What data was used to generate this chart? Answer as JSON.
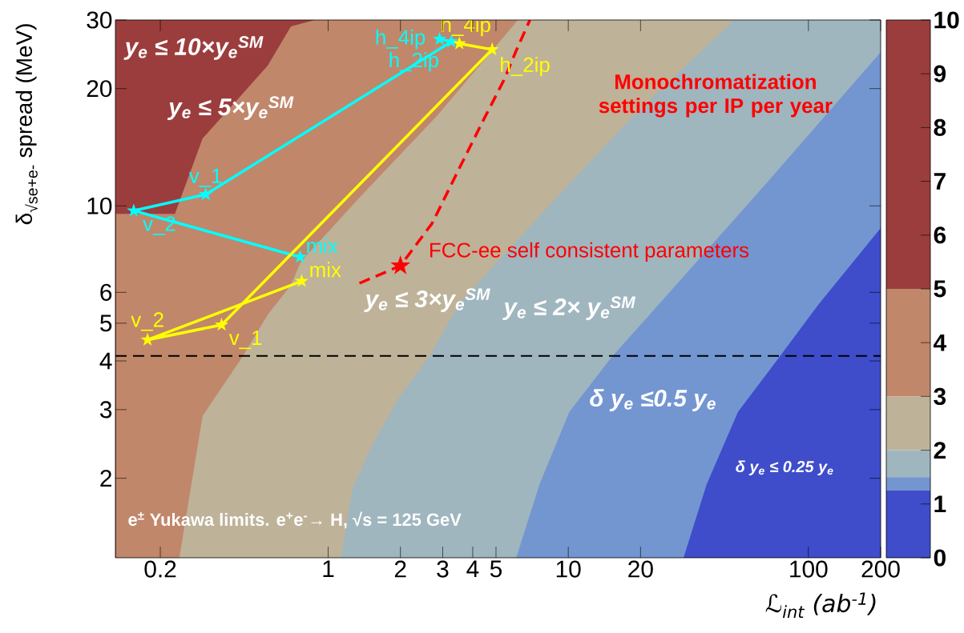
{
  "chart_data": [
    {
      "type": "line",
      "xlabel": "ℒ$_{int}$  (ab$^{-1}$)",
      "ylabel": "δ$_{√se+e-}$ spread (MeV)",
      "log": "xy",
      "xlim": [
        0.13,
        200
      ],
      "ylim": [
        1.25,
        30
      ],
      "xticks": [
        0.2,
        1,
        2,
        3,
        4,
        5,
        10,
        20,
        100,
        200
      ],
      "yticks": [
        2,
        3,
        4,
        5,
        6,
        10,
        20,
        30
      ],
      "bands": [
        {
          "axis": "y",
          "from": 1.25,
          "to": 30,
          "color": "#9b3d3d"
        }
      ],
      "ref_lines": [
        {
          "axis": "y",
          "value": 4.12,
          "color": "#000000",
          "line_style": "dashed"
        }
      ],
      "series": [
        {
          "type": "area",
          "color": "#c0876b",
          "x": [
            0.131,
            0.23,
            0.3,
            0.44,
            0.56,
            0.7,
            0.878,
            6.17
          ],
          "values": [
            9.54,
            9.54,
            14.9,
            19.4,
            22.9,
            28.9,
            30,
            30
          ]
        },
        {
          "type": "area",
          "color": "#beb299",
          "x": [
            0.24,
            0.3,
            0.44,
            0.56,
            0.7,
            0.77,
            1.33,
            2.86,
            6.17,
            200
          ],
          "values": [
            1.25,
            2.89,
            4.1,
            5.26,
            6.27,
            7.19,
            10.4,
            17.1,
            30,
            30
          ]
        },
        {
          "type": "area",
          "color": "#9fb6bf",
          "x": [
            1.13,
            1.26,
            1.5,
            1.95,
            2.65,
            3.52,
            9.05,
            19.5,
            49,
            200
          ],
          "values": [
            1.25,
            1.88,
            2.38,
            3.19,
            4.12,
            5.62,
            10.6,
            17.5,
            30,
            30
          ]
        },
        {
          "type": "area",
          "color": "#7396d1",
          "x": [
            6.07,
            7.59,
            10.1,
            15.2,
            24.0,
            66.6,
            200
          ],
          "values": [
            1.25,
            1.93,
            2.96,
            4.1,
            5.62,
            11.4,
            24.8
          ]
        },
        {
          "type": "area",
          "color": "#3f4dcb",
          "x": [
            30.2,
            37.7,
            50.9,
            75.9,
            111,
            200
          ],
          "values": [
            1.25,
            1.93,
            2.96,
            4.1,
            5.62,
            8.77
          ]
        },
        {
          "type": "line",
          "color": "#00ffff",
          "marker": "star",
          "x": [
            0.764,
            0.155,
            0.309,
            3.26,
            2.91
          ],
          "values": [
            7.39,
            9.72,
            10.7,
            26.4,
            26.8
          ]
        },
        {
          "type": "line",
          "color": "#ffff00",
          "marker": "star",
          "x": [
            0.776,
            0.177,
            0.36,
            4.82,
            3.52
          ],
          "values": [
            6.41,
            4.53,
            4.95,
            25.2,
            26.1
          ]
        },
        {
          "type": "line",
          "color": "#ff0000",
          "marker": "none",
          "line_style": "dashed",
          "x": [
            1.35,
            2.0,
            2.71,
            3.52,
            4.43,
            5.41,
            6.03,
            6.92
          ],
          "values": [
            6.33,
            7.02,
            9.02,
            12.5,
            16.6,
            21.1,
            24.8,
            30
          ]
        },
        {
          "type": "scatter",
          "color": "#ff0000",
          "marker": "star",
          "x": [
            2.0
          ],
          "values": [
            7.02
          ]
        }
      ],
      "annotations": [
        "y$_{e}$ ≤ 10×y$_{e}$$^{SM}$",
        "y$_{e}$ ≤ 5×y$_{e}$$^{SM}$",
        "y$_{e}$ ≤ 3×y$_{e}$$^{SM}$",
        "y$_{e}$ ≤ 2× y$_{e}$$^{SM}$",
        "δ y$_{e}$ ≤0.5 y$_{e}$",
        "δ y$_{e}$ ≤ 0.25 y$_{e}$",
        "e$^{±}$ Yukawa limits. e$^{+}$e$^{-}$→ H, √s = 125 GeV",
        "Monochromatization settings per IP per year",
        {
          "text": "mix",
          "x": 0.764,
          "y": 7.39
        },
        {
          "text": "v_2",
          "x": 0.155,
          "y": 9.72
        },
        {
          "text": "v_1",
          "x": 0.309,
          "y": 10.7
        },
        {
          "text": "h_2ip",
          "x": 3.26,
          "y": 26.4
        },
        {
          "text": "h_4ip",
          "x": 2.91,
          "y": 26.8
        },
        {
          "text": "mix",
          "x": 0.776,
          "y": 6.41
        },
        {
          "text": "v_2",
          "x": 0.177,
          "y": 4.53
        },
        {
          "text": "v_1",
          "x": 0.36,
          "y": 4.95
        },
        {
          "text": "h_2ip",
          "x": 4.82,
          "y": 25.2
        },
        {
          "text": "h_4ip",
          "x": 3.52,
          "y": 26.1
        },
        {
          "text": "FCC-ee self consistent parameters",
          "x": 2.0,
          "y": 7.02
        }
      ]
    },
    {
      "type": "bar",
      "stacked": true,
      "categories": [
        null
      ],
      "ylim": [
        0,
        10
      ],
      "yticks": [
        0,
        1,
        2,
        3,
        4,
        5,
        6,
        7,
        8,
        9,
        10
      ],
      "series": [
        {
          "color": "#3f4dcb",
          "values": [
            1.25
          ]
        },
        {
          "color": "#7396d1",
          "values": [
            0.25
          ]
        },
        {
          "color": "#9fb6bf",
          "values": [
            0.5
          ]
        },
        {
          "color": "#beb299",
          "values": [
            1
          ]
        },
        {
          "color": "#c0876b",
          "values": [
            2
          ]
        },
        {
          "color": "#9b3d3d",
          "values": [
            5
          ]
        }
      ]
    }
  ]
}
